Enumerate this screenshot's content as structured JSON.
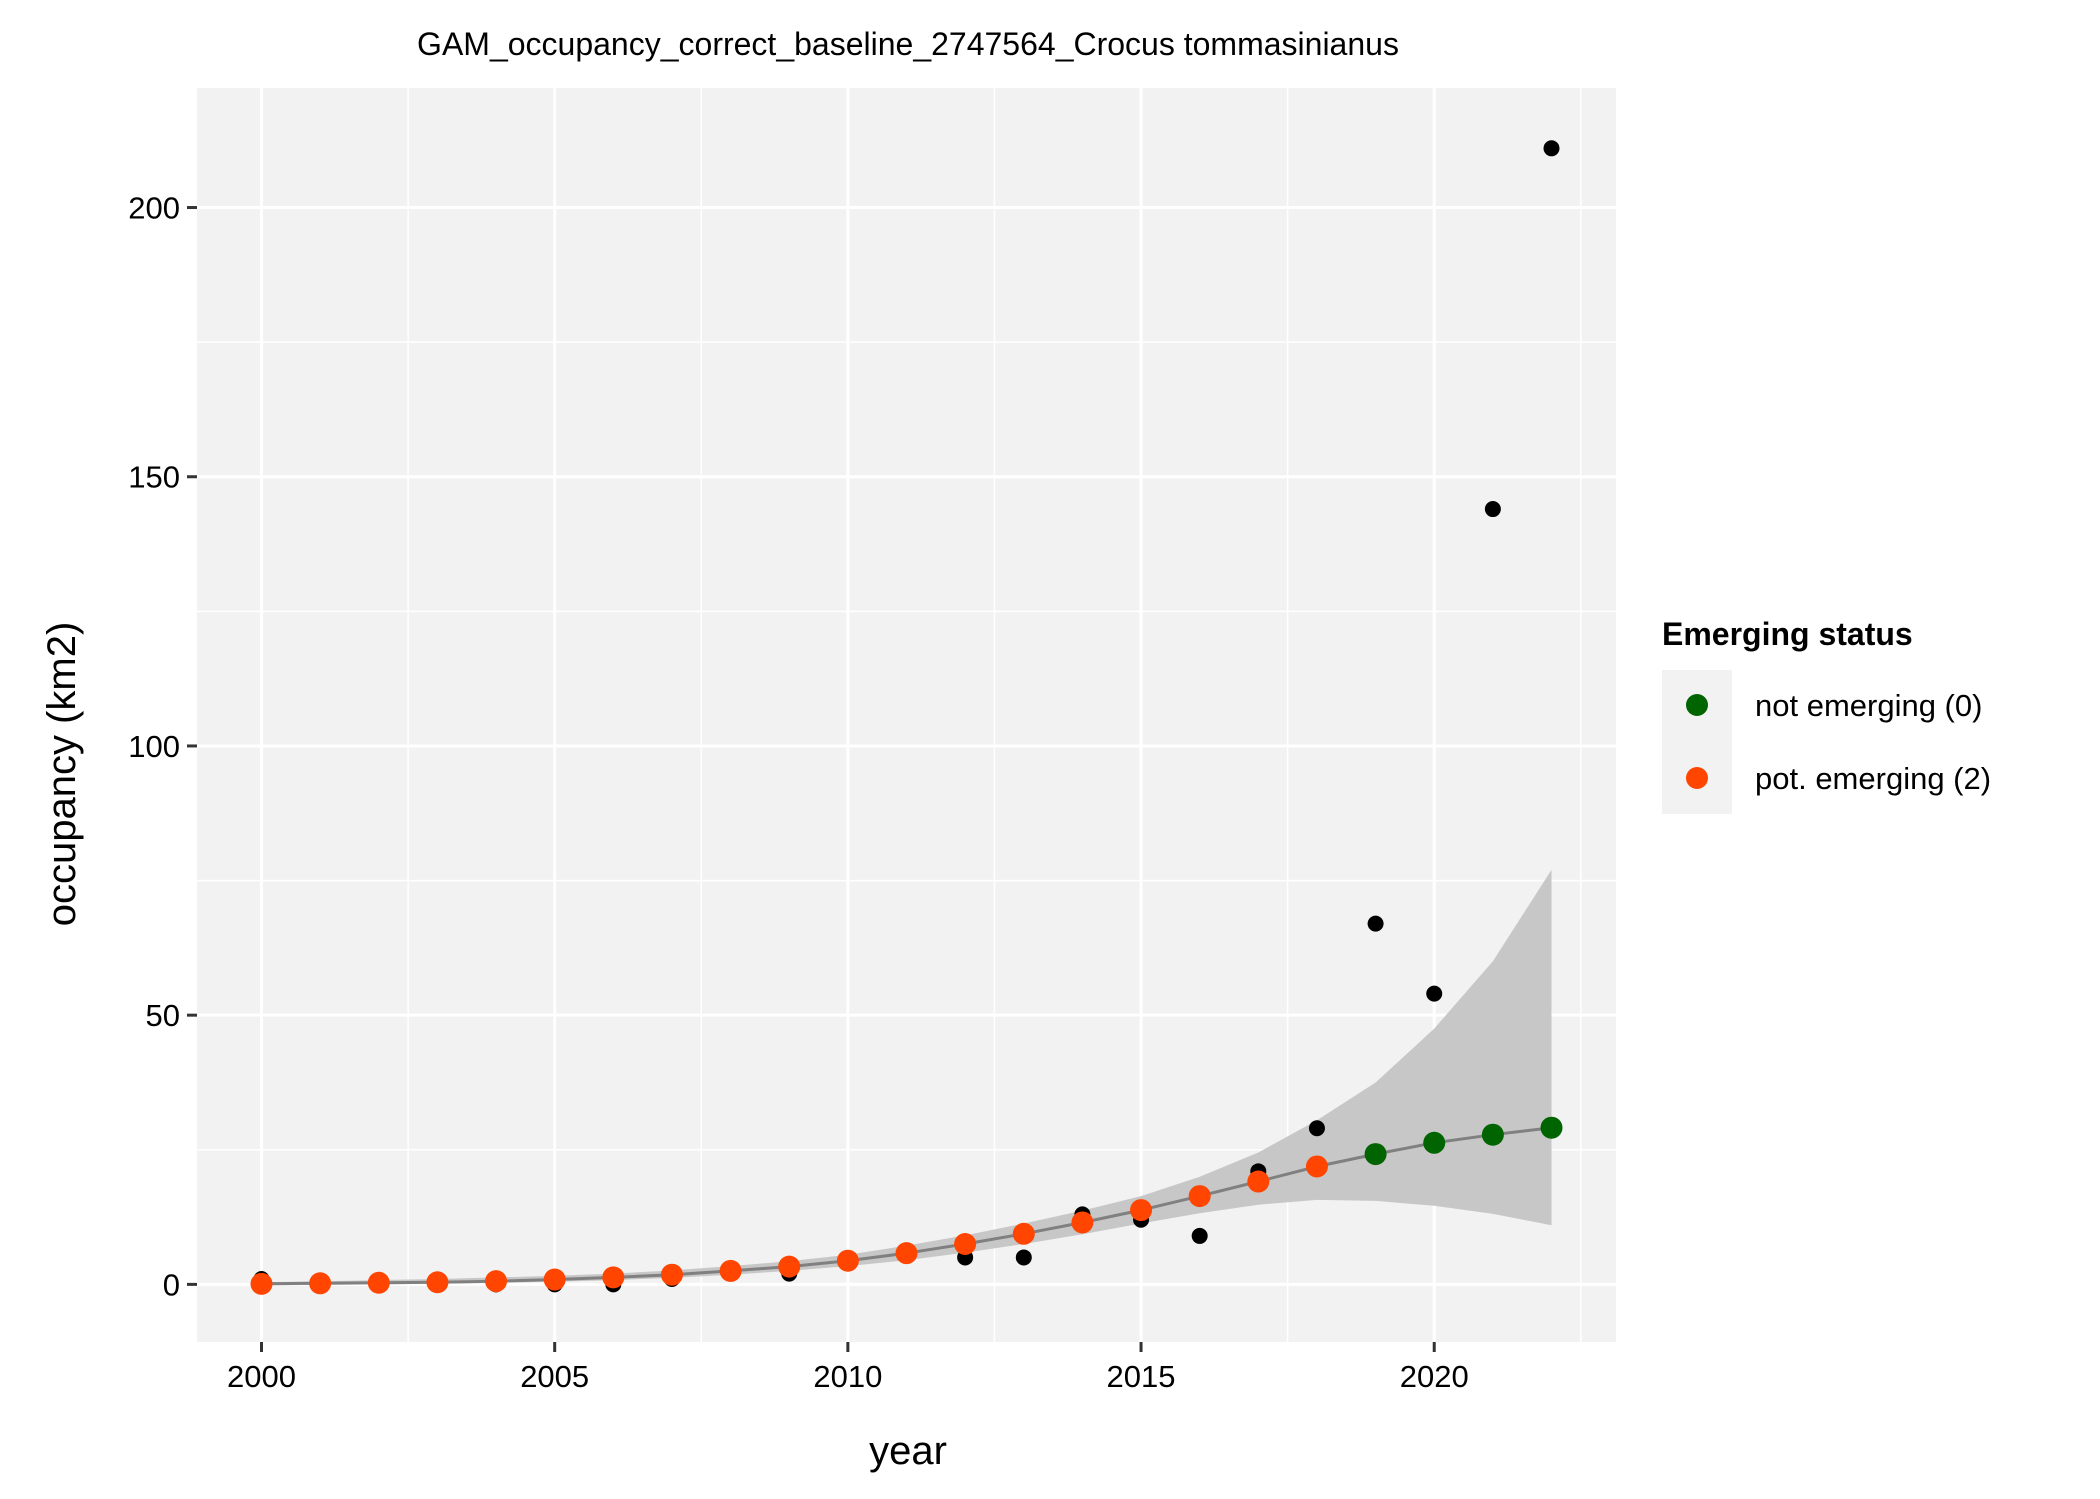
{
  "chart_data": {
    "type": "scatter",
    "title": "GAM_occupancy_correct_baseline_2747564_Crocus tommasinianus",
    "xlabel": "year",
    "ylabel": "occupancy (km2)",
    "xlim": [
      1998.9,
      2023.1
    ],
    "ylim": [
      -10.7,
      222.2
    ],
    "x_ticks": [
      2000,
      2005,
      2010,
      2015,
      2020
    ],
    "y_ticks": [
      0,
      50,
      100,
      150,
      200
    ],
    "x_tick_labels": [
      "2000",
      "2005",
      "2010",
      "2015",
      "2020"
    ],
    "y_tick_labels": [
      "0",
      "50",
      "100",
      "150",
      "200"
    ],
    "grid": true,
    "legend": {
      "title": "Emerging status",
      "position": "right",
      "entries": [
        {
          "label": "not emerging (0)",
          "color": "#006400"
        },
        {
          "label": "pot. emerging (2)",
          "color": "#FF4500"
        }
      ]
    },
    "colors": {
      "panel_background": "#F2F2F2",
      "grid": "#FFFFFF",
      "observed_points": "#000000",
      "fit_line": "#808080",
      "confidence_band": "#C7C7C7"
    },
    "observed": {
      "x": [
        2000,
        2001,
        2002,
        2003,
        2004,
        2005,
        2006,
        2007,
        2008,
        2009,
        2010,
        2011,
        2012,
        2013,
        2014,
        2015,
        2016,
        2017,
        2018,
        2019,
        2020,
        2021,
        2022
      ],
      "y": [
        1,
        0,
        0,
        0,
        0,
        0,
        0,
        1,
        2,
        2,
        4,
        6,
        5,
        5,
        13,
        12,
        9,
        21,
        29,
        67,
        54,
        144,
        211
      ]
    },
    "fitted": {
      "x": [
        2000,
        2001,
        2002,
        2003,
        2004,
        2005,
        2006,
        2007,
        2008,
        2009,
        2010,
        2011,
        2012,
        2013,
        2014,
        2015,
        2016,
        2017,
        2018,
        2019,
        2020,
        2021,
        2022
      ],
      "y": [
        0.1,
        0.2,
        0.3,
        0.4,
        0.6,
        0.9,
        1.3,
        1.8,
        2.5,
        3.3,
        4.4,
        5.8,
        7.5,
        9.4,
        11.5,
        13.8,
        16.4,
        19.1,
        21.9,
        24.2,
        26.3,
        27.8,
        29.1
      ],
      "status": [
        "2",
        "2",
        "2",
        "2",
        "2",
        "2",
        "2",
        "2",
        "2",
        "2",
        "2",
        "2",
        "2",
        "2",
        "2",
        "2",
        "2",
        "2",
        "2",
        "0",
        "0",
        "0",
        "0"
      ],
      "lower": [
        -0.2,
        -0.1,
        0.0,
        0.1,
        0.3,
        0.5,
        0.8,
        1.2,
        1.8,
        2.5,
        3.4,
        4.5,
        5.9,
        7.5,
        9.3,
        11.3,
        13.2,
        14.8,
        15.7,
        15.5,
        14.6,
        13.1,
        11.0
      ],
      "upper": [
        0.4,
        0.6,
        0.8,
        1.0,
        1.3,
        1.6,
        2.0,
        2.6,
        3.4,
        4.3,
        5.5,
        7.2,
        9.1,
        11.3,
        13.7,
        16.4,
        20.0,
        24.5,
        30.5,
        37.5,
        47.5,
        60.0,
        77.0
      ]
    }
  }
}
